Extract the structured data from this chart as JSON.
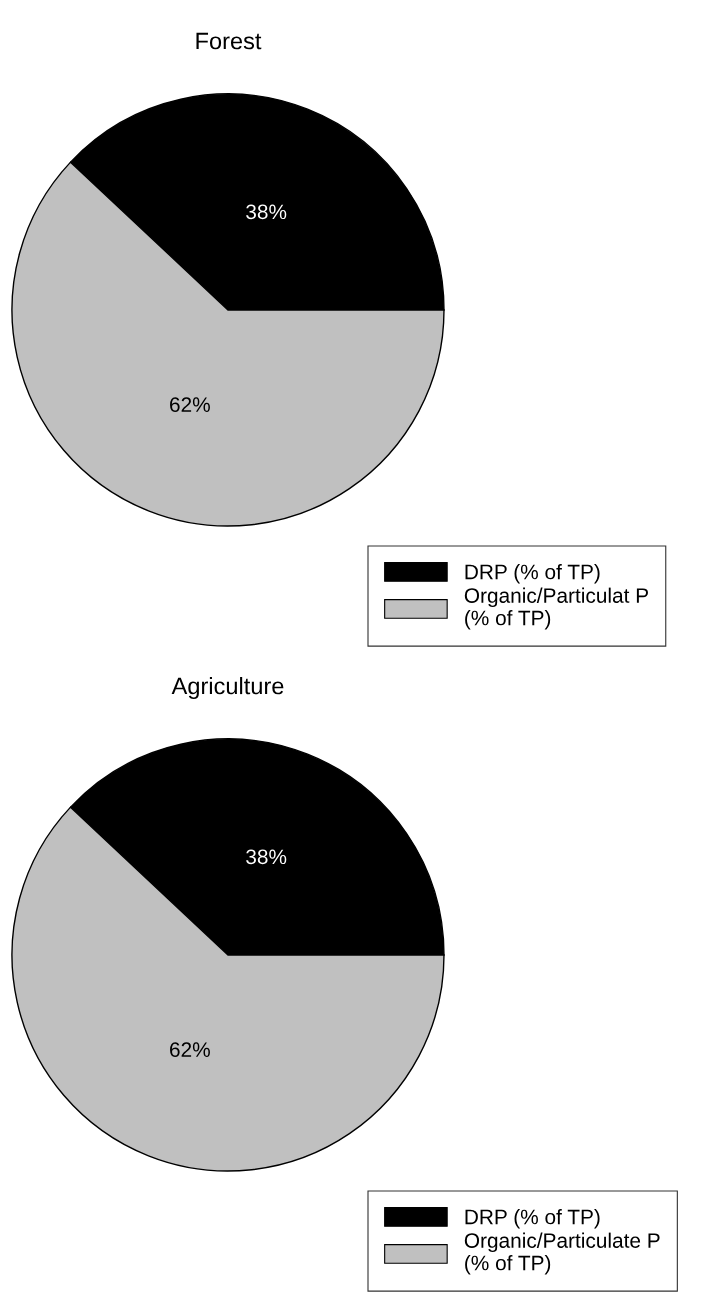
{
  "chart_data": [
    {
      "type": "pie",
      "title": "Forest",
      "categories": [
        "DRP (% of TP)",
        "Organic/Particulat P\n(% of TP)"
      ],
      "values": [
        38,
        62
      ],
      "colors": [
        "#000000",
        "#c0c0c0"
      ],
      "value_labels": [
        "38%",
        "62%"
      ],
      "legend": "bottom right"
    },
    {
      "type": "pie",
      "title": "Agriculture",
      "categories": [
        "DRP (% of TP)",
        "Organic/Particulate P\n(% of TP)"
      ],
      "values": [
        38,
        62
      ],
      "colors": [
        "#000000",
        "#c0c0c0"
      ],
      "value_labels": [
        "38%",
        "62%"
      ],
      "legend": "bottom right"
    }
  ]
}
